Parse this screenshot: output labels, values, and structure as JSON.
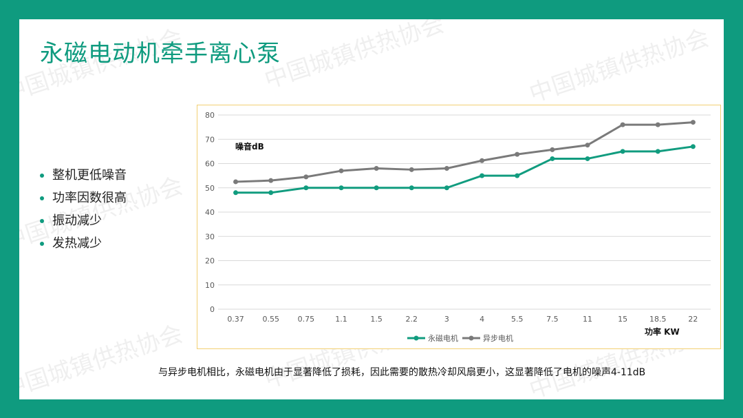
{
  "slide": {
    "title": "永磁电动机牵手离心泵",
    "bullets": [
      "整机更低噪音",
      "功率因数很高",
      "振动减少",
      "发热减少"
    ],
    "caption": "与异步电机相比，永磁电机由于显著降低了损耗，因此需要的散热冷却风扇更小，这显著降低了电机的噪声4-11dB",
    "watermark": "中国城镇供热协会",
    "colors": {
      "accent": "#0f9b7f",
      "series_pm": "#119c7f",
      "series_async": "#7a7a7a",
      "chart_border": "#f2cf72"
    }
  },
  "chart_data": {
    "type": "line",
    "categories": [
      "0.37",
      "0.55",
      "0.75",
      "1.1",
      "1.5",
      "2.2",
      "3",
      "4",
      "5.5",
      "7.5",
      "11",
      "15",
      "18.5",
      "22"
    ],
    "series": [
      {
        "name": "永磁电机",
        "values": [
          48,
          48,
          50,
          50,
          50,
          50,
          50,
          55,
          55,
          62,
          62,
          65,
          65,
          67
        ]
      },
      {
        "name": "异步电机",
        "values": [
          52.5,
          53,
          54.5,
          57,
          58,
          57.5,
          58,
          61.2,
          63.8,
          65.7,
          67.6,
          76,
          76,
          77
        ]
      }
    ],
    "ylabel": "噪音dB",
    "xlabel": "功率 KW",
    "ylim": [
      0,
      80
    ],
    "yticks": [
      0,
      10,
      20,
      30,
      40,
      50,
      60,
      70,
      80
    ],
    "grid": true,
    "legend": "bottom"
  }
}
